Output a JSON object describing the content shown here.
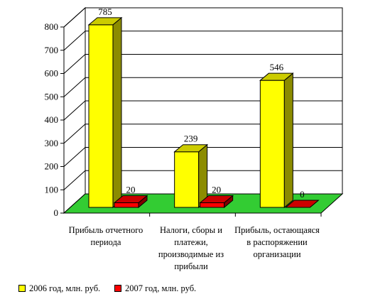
{
  "chart_data": {
    "type": "bar",
    "categories": [
      "Прибыль отчетного периода",
      "Налоги, сборы и платежи, производимые из прибыли",
      "Прибыль, остающаяся в распоряжении организации"
    ],
    "category_lines": [
      [
        "Прибыль отчетного",
        "периода"
      ],
      [
        "Налоги, сборы и",
        "платежи,",
        "производимые из",
        "прибыли"
      ],
      [
        "Прибыль, остающаяся",
        "в распоряжении",
        "организации"
      ]
    ],
    "series": [
      {
        "name": "2006 год, млн. руб.",
        "values": [
          785,
          239,
          546
        ],
        "color": "#ffff00",
        "side_color": "#8c8c00",
        "top_color": "#cccc00"
      },
      {
        "name": "2007 год, млн. руб.",
        "values": [
          20,
          20,
          0
        ],
        "color": "#ff0000",
        "side_color": "#800000",
        "top_color": "#cc0000"
      }
    ],
    "data_labels": [
      [
        "785",
        "239",
        "546"
      ],
      [
        "20",
        "20",
        "0"
      ]
    ],
    "y_ticks": [
      "0",
      "100",
      "200",
      "300",
      "400",
      "500",
      "600",
      "700",
      "800"
    ],
    "ylim": [
      0,
      800
    ],
    "grid": true,
    "floor_color": "#33cc33",
    "legend_position": "bottom-left",
    "title": "",
    "xlabel": "",
    "ylabel": ""
  }
}
